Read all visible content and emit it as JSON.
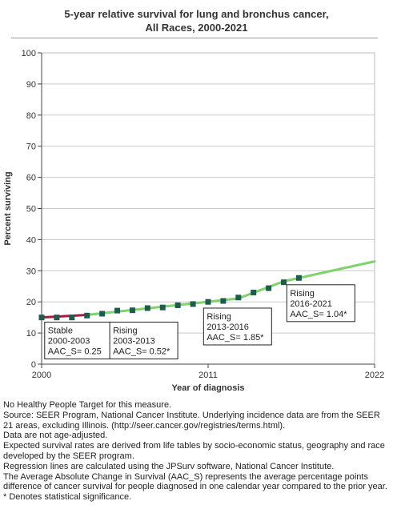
{
  "chart_data": {
    "type": "line",
    "title_line1": "5-year relative survival for lung and bronchus cancer,",
    "title_line2": "All Races,  2000-2021",
    "xlabel": "Year of diagnosis",
    "ylabel": "Percent surviving",
    "xlim": [
      2000,
      2022
    ],
    "ylim": [
      0,
      100
    ],
    "x_ticks": [
      2000,
      2011,
      2022
    ],
    "y_ticks": [
      0,
      10,
      20,
      30,
      40,
      50,
      60,
      70,
      80,
      90,
      100
    ],
    "grid": "horizontal",
    "colors": {
      "observed": "#1e5c4f",
      "fit_stable": "#a01e3c",
      "fit": "#7fd36a",
      "frame": "#bbbbbb",
      "grid": "#c8c8c8"
    },
    "observed": {
      "marker": "square",
      "x": [
        2000,
        2001,
        2002,
        2003,
        2004,
        2005,
        2006,
        2007,
        2008,
        2009,
        2010,
        2011,
        2012,
        2013,
        2014,
        2015,
        2016,
        2017
      ],
      "y": [
        15.0,
        15.0,
        15.0,
        15.6,
        16.2,
        17.2,
        17.3,
        18.0,
        18.2,
        18.9,
        19.3,
        20.0,
        20.3,
        21.4,
        23.0,
        24.4,
        26.3,
        27.7
      ]
    },
    "fit_segments": [
      {
        "x": [
          2000,
          2003
        ],
        "y": [
          15.0,
          15.8
        ],
        "color": "#a01e3c"
      },
      {
        "x": [
          2003,
          2013
        ],
        "y": [
          15.8,
          21.1
        ],
        "color": "#7fd36a"
      },
      {
        "x": [
          2013,
          2016
        ],
        "y": [
          21.1,
          26.6
        ],
        "color": "#7fd36a"
      },
      {
        "x": [
          2016,
          2022
        ],
        "y": [
          26.6,
          33.0
        ],
        "color": "#7fd36a"
      }
    ],
    "annotations": [
      {
        "lines": [
          "Stable",
          "2000-2003",
          "AAC_S=  0.25"
        ],
        "anchor_year": 2000.2,
        "anchor_value": 13.5
      },
      {
        "lines": [
          "Rising",
          "2003-2013",
          "AAC_S=  0.52*"
        ],
        "anchor_year": 2004.5,
        "anchor_value": 13.5
      },
      {
        "lines": [
          "Rising",
          "2013-2016",
          "AAC_S=  1.85*"
        ],
        "anchor_year": 2010.7,
        "anchor_value": 18.0
      },
      {
        "lines": [
          "Rising",
          "2016-2021",
          "AAC_S=  1.04*"
        ],
        "anchor_year": 2016.2,
        "anchor_value": 25.5
      }
    ]
  },
  "footnotes": [
    "No Healthy People Target for this measure.",
    "Source: SEER Program, National Cancer Institute. Underlying incidence data are from the SEER 21 areas, excluding Illinois. (http://seer.cancer.gov/registries/terms.html).",
    "Data are not age-adjusted.",
    "Expected survival rates are derived from life tables by socio-economic status, geography and race developed by the SEER program.",
    "Regression lines are calculated using the JPSurv software, National Cancer Institute.",
    "The Average Absolute Change in Survival (AAC_S) represents the average percentage points difference of cancer survival for people diagnosed in one calendar year compared to the prior year.",
    "* Denotes statistical significance."
  ]
}
